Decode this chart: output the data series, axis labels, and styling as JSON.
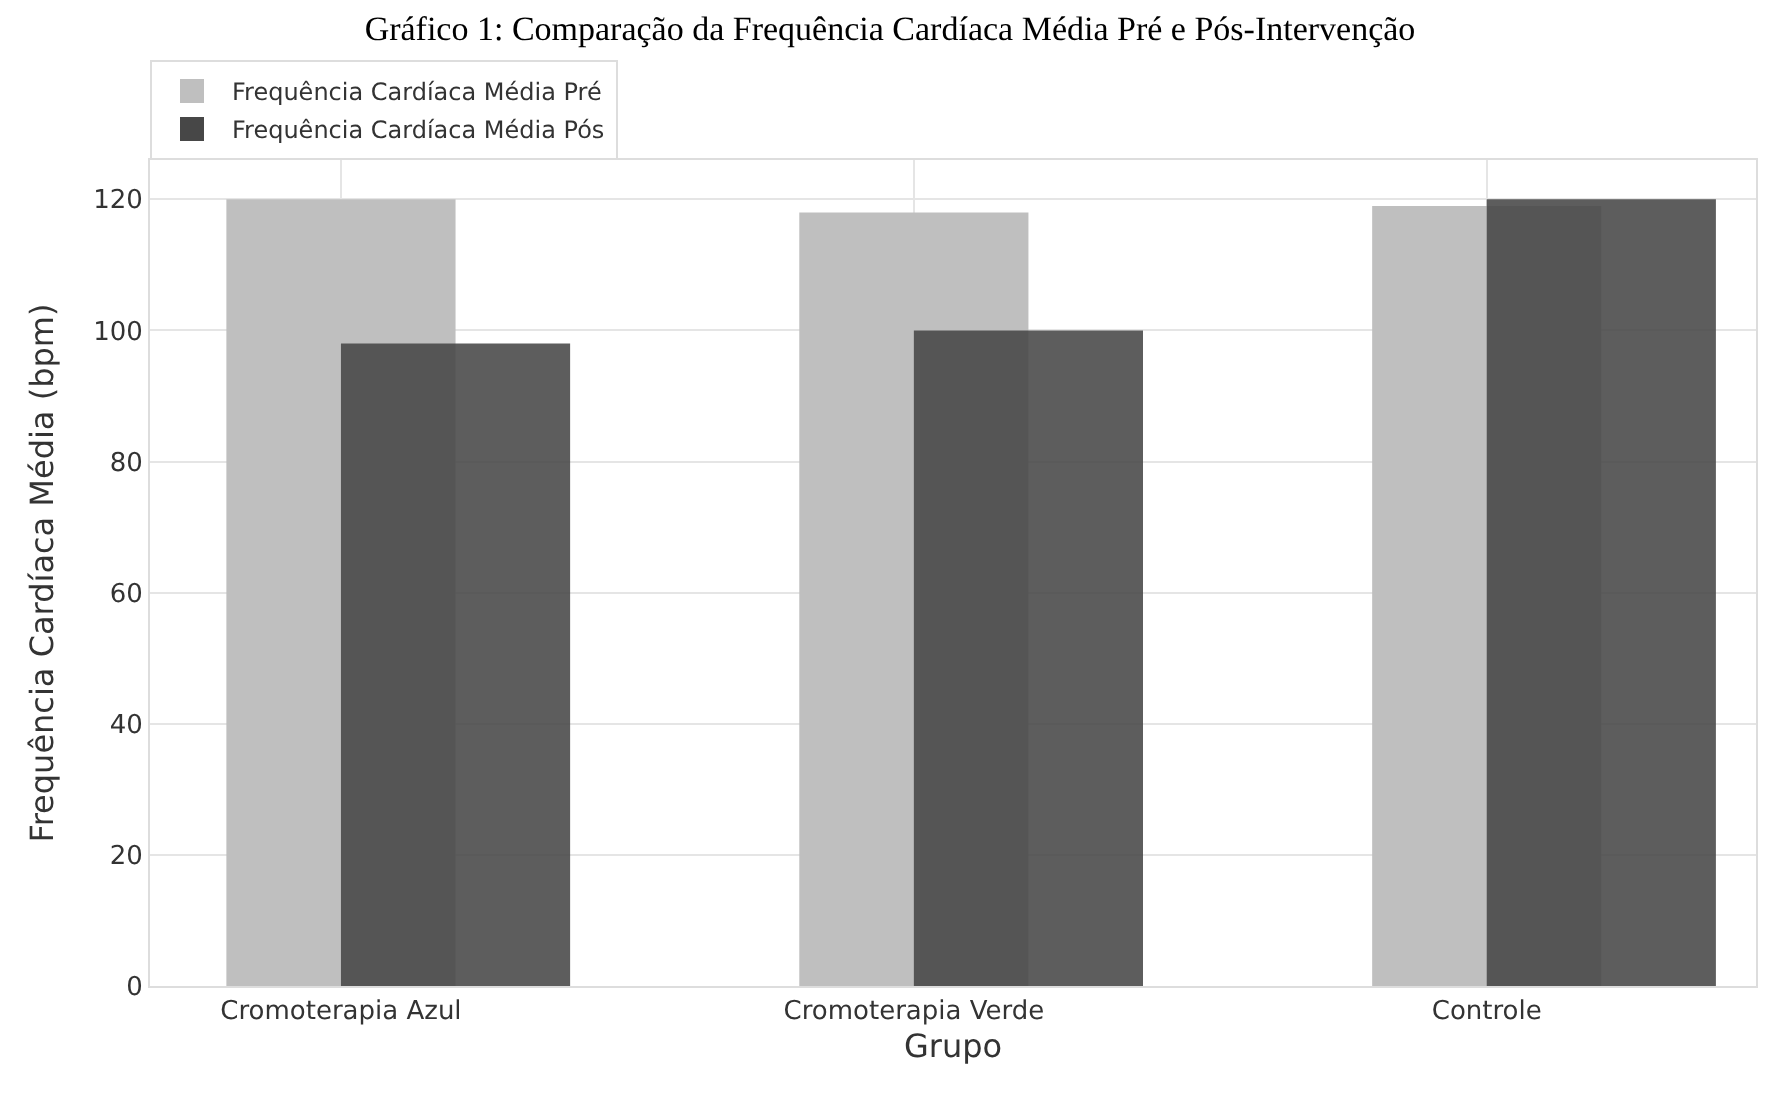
{
  "chart_data": {
    "type": "bar",
    "title": "Gráfico 1: Comparação da Frequência Cardíaca Média Pré e Pós-Intervenção",
    "xlabel": "Grupo",
    "ylabel": "Frequência Cardíaca Média (bpm)",
    "categories": [
      "Cromoterapia Azul",
      "Cromoterapia Verde",
      "Controle"
    ],
    "series": [
      {
        "name": "Frequência Cardíaca Média Pré",
        "color": "#bfbfbf",
        "values": [
          120,
          118,
          119
        ]
      },
      {
        "name": "Frequência Cardíaca Média Pós",
        "color": "#474747",
        "values": [
          98,
          100,
          120
        ]
      }
    ],
    "ylim": [
      0,
      126
    ],
    "yticks": [
      0,
      20,
      40,
      60,
      80,
      100,
      120
    ],
    "grid": true,
    "legend": "top left"
  }
}
